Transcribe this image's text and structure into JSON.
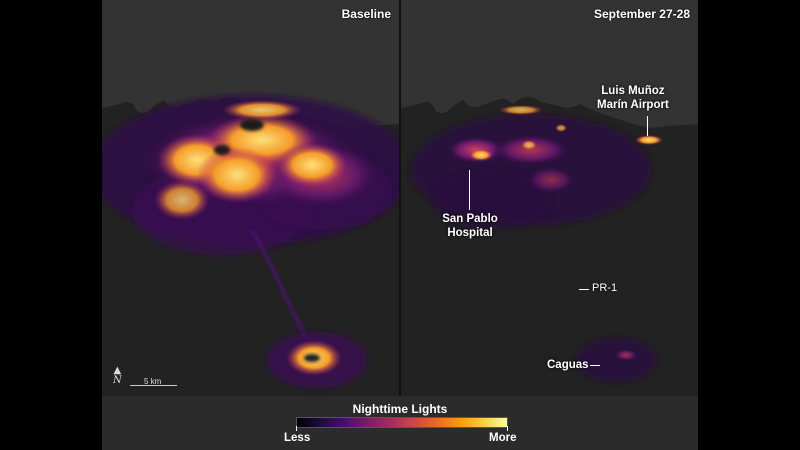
{
  "panels": {
    "left_title": "Baseline",
    "right_title": "September 27-28"
  },
  "labels": {
    "airport": "Luis Muñoz Marín Airport",
    "hospital": "San Pablo Hospital",
    "road": "PR-1",
    "town": "Caguas"
  },
  "legend": {
    "title": "Nighttime Lights",
    "min_label": "Less",
    "max_label": "More",
    "colormap": [
      "#000004",
      "#1b0c41",
      "#4a0c6b",
      "#781c6d",
      "#a52c60",
      "#cf4446",
      "#ed6925",
      "#fb9b06",
      "#f7d13d",
      "#fcffa4"
    ]
  },
  "scale_bar": {
    "label": "5 km",
    "north_symbol": "N"
  },
  "colors": {
    "ocean": "#2e2e2e",
    "land": "#1e1e1e",
    "bright": "#fbb13c",
    "mid": "#c4306a",
    "dim": "#3a0e55"
  }
}
